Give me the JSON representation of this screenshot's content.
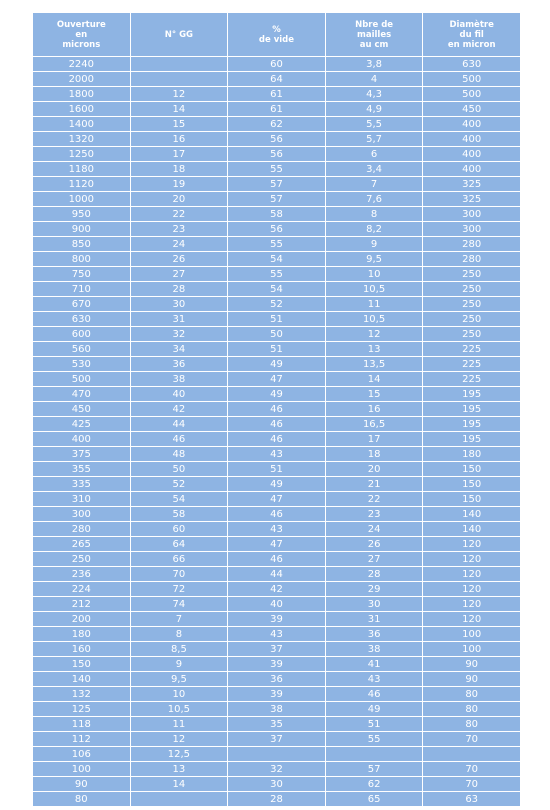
{
  "table": {
    "header": [
      "Ouverture\nen\nmicrons",
      "N° GG",
      "%\nde vide",
      "Nbre de\nmailles\nau cm",
      "Diamètre\ndu fil\nen micron"
    ],
    "rows": [
      [
        "2240",
        null,
        "60",
        "3,8",
        "630"
      ],
      [
        "2000",
        null,
        "64",
        "4",
        "500"
      ],
      [
        "1800",
        "12",
        "61",
        "4,3",
        "500"
      ],
      [
        "1600",
        "14",
        "61",
        "4,9",
        "450"
      ],
      [
        "1400",
        "15",
        "62",
        "5,5",
        "400"
      ],
      [
        "1320",
        "16",
        "56",
        "5,7",
        "400"
      ],
      [
        "1250",
        "17",
        "56",
        "6",
        "400"
      ],
      [
        "1180",
        "18",
        "55",
        "3,4",
        "400"
      ],
      [
        "1120",
        "19",
        "57",
        "7",
        "325"
      ],
      [
        "1000",
        "20",
        "57",
        "7,6",
        "325"
      ],
      [
        "950",
        "22",
        "58",
        "8",
        "300"
      ],
      [
        "900",
        "23",
        "56",
        "8,2",
        "300"
      ],
      [
        "850",
        "24",
        "55",
        "9",
        "280"
      ],
      [
        "800",
        "26",
        "54",
        "9,5",
        "280"
      ],
      [
        "750",
        "27",
        "55",
        "10",
        "250"
      ],
      [
        "710",
        "28",
        "54",
        "10,5",
        "250"
      ],
      [
        "670",
        "30",
        "52",
        "11",
        "250"
      ],
      [
        "630",
        "31",
        "51",
        "10,5",
        "250"
      ],
      [
        "600",
        "32",
        "50",
        "12",
        "250"
      ],
      [
        "560",
        "34",
        "51",
        "13",
        "225"
      ],
      [
        "530",
        "36",
        "49",
        "13,5",
        "225"
      ],
      [
        "500",
        "38",
        "47",
        "14",
        "225"
      ],
      [
        "470",
        "40",
        "49",
        "15",
        "195"
      ],
      [
        "450",
        "42",
        "46",
        "16",
        "195"
      ],
      [
        "425",
        "44",
        "46",
        "16,5",
        "195"
      ],
      [
        "400",
        "46",
        "46",
        "17",
        "195"
      ],
      [
        "375",
        "48",
        "43",
        "18",
        "180"
      ],
      [
        "355",
        "50",
        "51",
        "20",
        "150"
      ],
      [
        "335",
        "52",
        "49",
        "21",
        "150"
      ],
      [
        "310",
        "54",
        "47",
        "22",
        "150"
      ],
      [
        "300",
        "58",
        "46",
        "23",
        "140"
      ],
      [
        "280",
        "60",
        "43",
        "24",
        "140"
      ],
      [
        "265",
        "64",
        "47",
        "26",
        "120"
      ],
      [
        "250",
        "66",
        "46",
        "27",
        "120"
      ],
      [
        "236",
        "70",
        "44",
        "28",
        "120"
      ],
      [
        "224",
        "72",
        "42",
        "29",
        "120"
      ],
      [
        "212",
        "74",
        "40",
        "30",
        "120"
      ],
      [
        "200",
        "7",
        "39",
        "31",
        "120"
      ],
      [
        "180",
        "8",
        "43",
        "36",
        "100"
      ],
      [
        "160",
        "8,5",
        "37",
        "38",
        "100"
      ],
      [
        "150",
        "9",
        "39",
        "41",
        "90"
      ],
      [
        "140",
        "9,5",
        "36",
        "43",
        "90"
      ],
      [
        "132",
        "10",
        "39",
        "46",
        "80"
      ],
      [
        "125",
        "10,5",
        "38",
        "49",
        "80"
      ],
      [
        "118",
        "11",
        "35",
        "51",
        "80"
      ],
      [
        "112",
        "12",
        "37",
        "55",
        "70"
      ],
      [
        "106",
        "12,5",
        null,
        null,
        null
      ],
      [
        "100",
        "13",
        "32",
        "57",
        "70"
      ],
      [
        "90",
        "14",
        "30",
        "62",
        "70"
      ],
      [
        "80",
        null,
        "28",
        "65",
        "63"
      ]
    ]
  }
}
